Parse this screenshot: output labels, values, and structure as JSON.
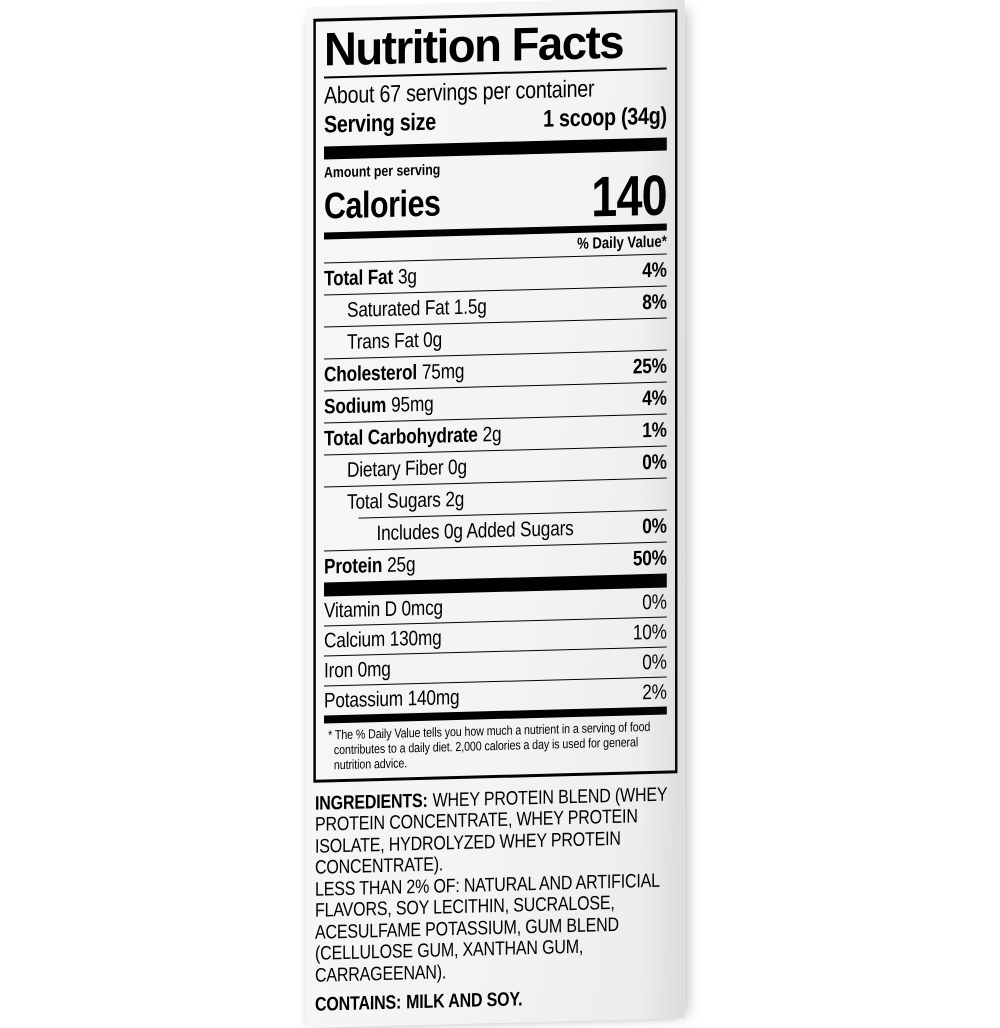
{
  "page": {
    "background_color": "#ffffff"
  },
  "label": {
    "paper_color": "#f4f4f2",
    "text_color": "#000000",
    "title": "Nutrition Facts",
    "servings_per_container": "About 67 servings per container",
    "serving_size_label": "Serving size",
    "serving_size_value": "1 scoop (34g)",
    "amount_per_serving": "Amount per serving",
    "calories_label": "Calories",
    "calories_value": "140",
    "daily_value_header": "% Daily Value*",
    "nutrients": [
      {
        "bold": "Total Fat",
        "rest": "3g",
        "dv": "4%"
      },
      {
        "bold": "",
        "rest": "Saturated Fat 1.5g",
        "dv": "8%"
      },
      {
        "bold": "",
        "rest": "Trans Fat 0g",
        "dv": ""
      },
      {
        "bold": "Cholesterol",
        "rest": "75mg",
        "dv": "25%"
      },
      {
        "bold": "Sodium",
        "rest": "95mg",
        "dv": "4%"
      },
      {
        "bold": "Total Carbohydrate",
        "rest": "2g",
        "dv": "1%"
      },
      {
        "bold": "",
        "rest": "Dietary Fiber 0g",
        "dv": "0%"
      },
      {
        "bold": "",
        "rest": "Total Sugars 2g",
        "dv": ""
      },
      {
        "bold": "",
        "rest": "Includes 0g Added Sugars",
        "dv": "0%"
      },
      {
        "bold": "Protein",
        "rest": "25g",
        "dv": "50%"
      }
    ],
    "vitamins": [
      {
        "name": "Vitamin D 0mcg",
        "dv": "0%"
      },
      {
        "name": "Calcium 130mg",
        "dv": "10%"
      },
      {
        "name": "Iron 0mg",
        "dv": "0%"
      },
      {
        "name": "Potassium 140mg",
        "dv": "2%"
      }
    ],
    "footnote": "* The % Daily Value tells you how much a nutrient in a serving of food contributes to a daily diet. 2,000 calories a day is used for general nutrition advice.",
    "ingredients": {
      "heading": "INGREDIENTS:",
      "blend": "WHEY PROTEIN BLEND (WHEY PROTEIN CONCENTRATE, WHEY PROTEIN ISOLATE, HYDROLYZED WHEY PROTEIN CONCENTRATE).",
      "less_than": "LESS THAN 2% OF: NATURAL AND ARTIFICIAL FLAVORS, SOY LECITHIN, SUCRALOSE, ACESULFAME POTASSIUM, GUM BLEND (CELLULOSE GUM, XANTHAN GUM, CARRAGEENAN)."
    },
    "contains": {
      "heading": "CONTAINS:",
      "text": "MILK AND SOY."
    }
  }
}
